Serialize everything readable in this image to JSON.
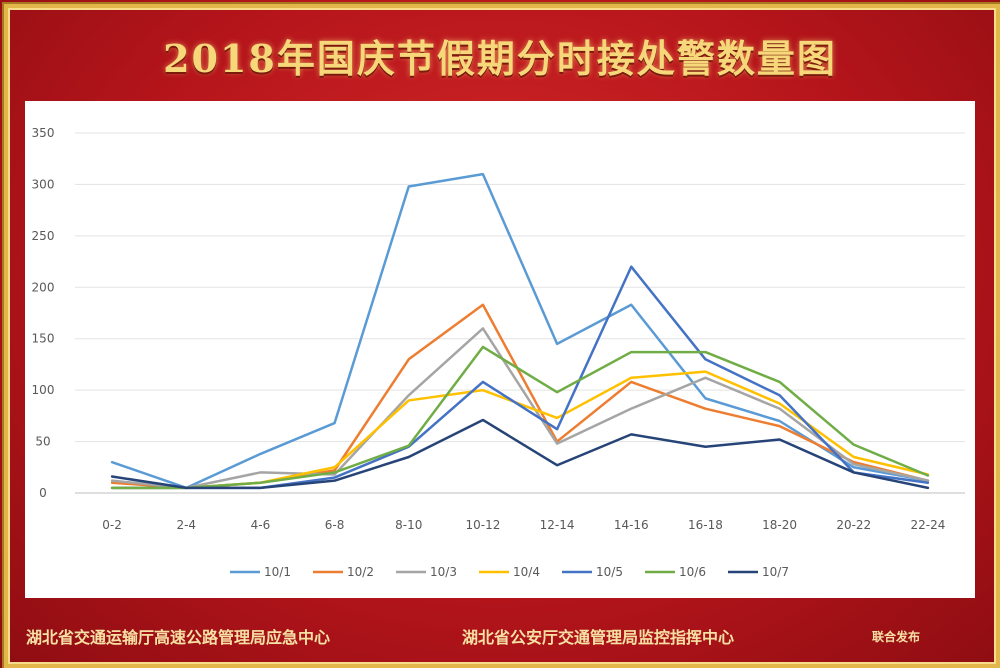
{
  "page": {
    "title": "2018年国庆节假期分时接处警数量图",
    "footer_left": "湖北省交通运输厅高速公路管理局应急中心",
    "footer_middle": "湖北省公安厅交通管理局监控指挥中心",
    "footer_right": "联合发布"
  },
  "colors": {
    "background": "#b3141b",
    "border_gold": "#e2b64a",
    "title_gold": "#f6d77a"
  },
  "chart_data": {
    "type": "line",
    "title": "",
    "xlabel": "",
    "ylabel": "",
    "categories": [
      "0-2",
      "2-4",
      "4-6",
      "6-8",
      "8-10",
      "10-12",
      "12-14",
      "14-16",
      "16-18",
      "18-20",
      "20-22",
      "22-24"
    ],
    "ylim": [
      0,
      350
    ],
    "yticks": [
      0,
      50,
      100,
      150,
      200,
      250,
      300,
      350
    ],
    "grid": true,
    "legend_position": "bottom",
    "series": [
      {
        "name": "10/1",
        "color": "#5b9bd5",
        "values": [
          30,
          5,
          38,
          68,
          298,
          310,
          145,
          183,
          92,
          70,
          25,
          12
        ]
      },
      {
        "name": "10/2",
        "color": "#ed7d31",
        "values": [
          10,
          5,
          10,
          22,
          130,
          183,
          50,
          108,
          82,
          65,
          30,
          12
        ]
      },
      {
        "name": "10/3",
        "color": "#a5a5a5",
        "values": [
          12,
          5,
          20,
          18,
          95,
          160,
          48,
          82,
          112,
          82,
          28,
          12
        ]
      },
      {
        "name": "10/4",
        "color": "#ffc000",
        "values": [
          5,
          5,
          10,
          25,
          90,
          100,
          73,
          112,
          118,
          87,
          35,
          18
        ]
      },
      {
        "name": "10/5",
        "color": "#4472c4",
        "values": [
          5,
          5,
          5,
          15,
          45,
          108,
          62,
          220,
          130,
          95,
          20,
          10
        ]
      },
      {
        "name": "10/6",
        "color": "#70ad47",
        "values": [
          5,
          5,
          10,
          20,
          46,
          142,
          98,
          137,
          137,
          108,
          47,
          17
        ]
      },
      {
        "name": "10/7",
        "color": "#264478",
        "values": [
          16,
          5,
          5,
          12,
          35,
          71,
          27,
          57,
          45,
          52,
          20,
          5
        ]
      }
    ]
  }
}
